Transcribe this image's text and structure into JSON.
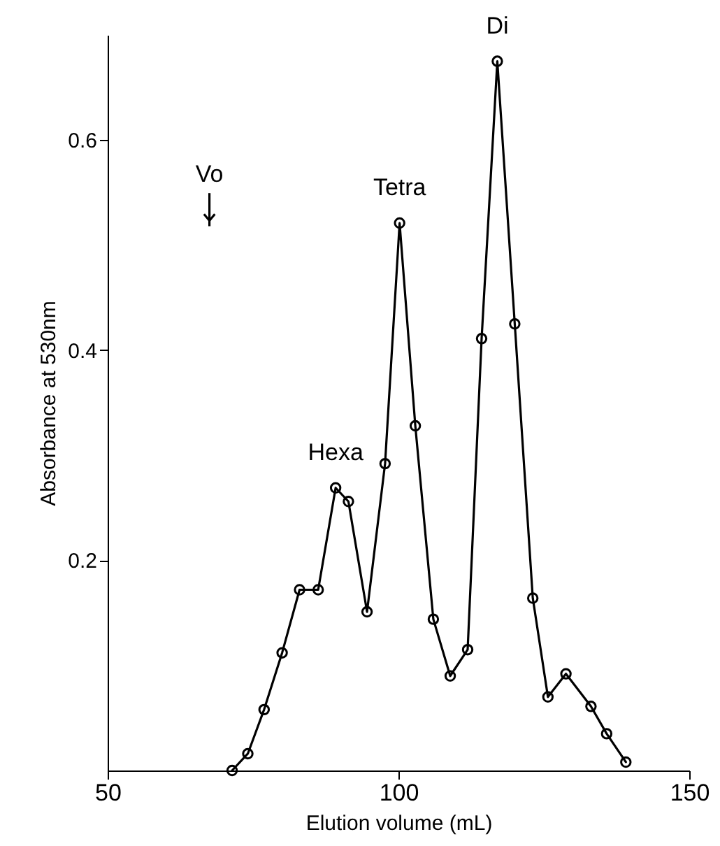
{
  "chart_data": {
    "type": "line",
    "xlabel": "Elution volume (mL)",
    "ylabel": "Absorbance at 530nm",
    "x": [
      71.4,
      74.1,
      76.9,
      80.0,
      83.0,
      86.2,
      89.2,
      91.4,
      94.6,
      97.7,
      100.2,
      102.9,
      106.0,
      108.9,
      111.9,
      114.3,
      117.0,
      120.0,
      123.1,
      125.7,
      128.8,
      133.1,
      135.8,
      139.1
    ],
    "series": [
      {
        "color": "#000000",
        "values": [
          0.0,
          0.016,
          0.058,
          0.112,
          0.172,
          0.172,
          0.269,
          0.256,
          0.151,
          0.292,
          0.521,
          0.328,
          0.144,
          0.09,
          0.115,
          0.411,
          0.675,
          0.425,
          0.164,
          0.07,
          0.092,
          0.061,
          0.035,
          0.008
        ]
      }
    ],
    "xlim": [
      50,
      150
    ],
    "xticks": [
      50,
      100,
      150
    ],
    "ylim": [
      0,
      0.7
    ],
    "yticks": [
      0.2,
      0.4,
      0.6
    ],
    "marker": "circle",
    "line_style": "solid",
    "annotations": [
      "Vo",
      {
        "text": "Hexa",
        "x": 89.2,
        "y": 0.269
      },
      {
        "text": "Tetra",
        "x": 100.2,
        "y": 0.521
      },
      {
        "text": "Di",
        "x": 117.0,
        "y": 0.675
      }
    ]
  }
}
